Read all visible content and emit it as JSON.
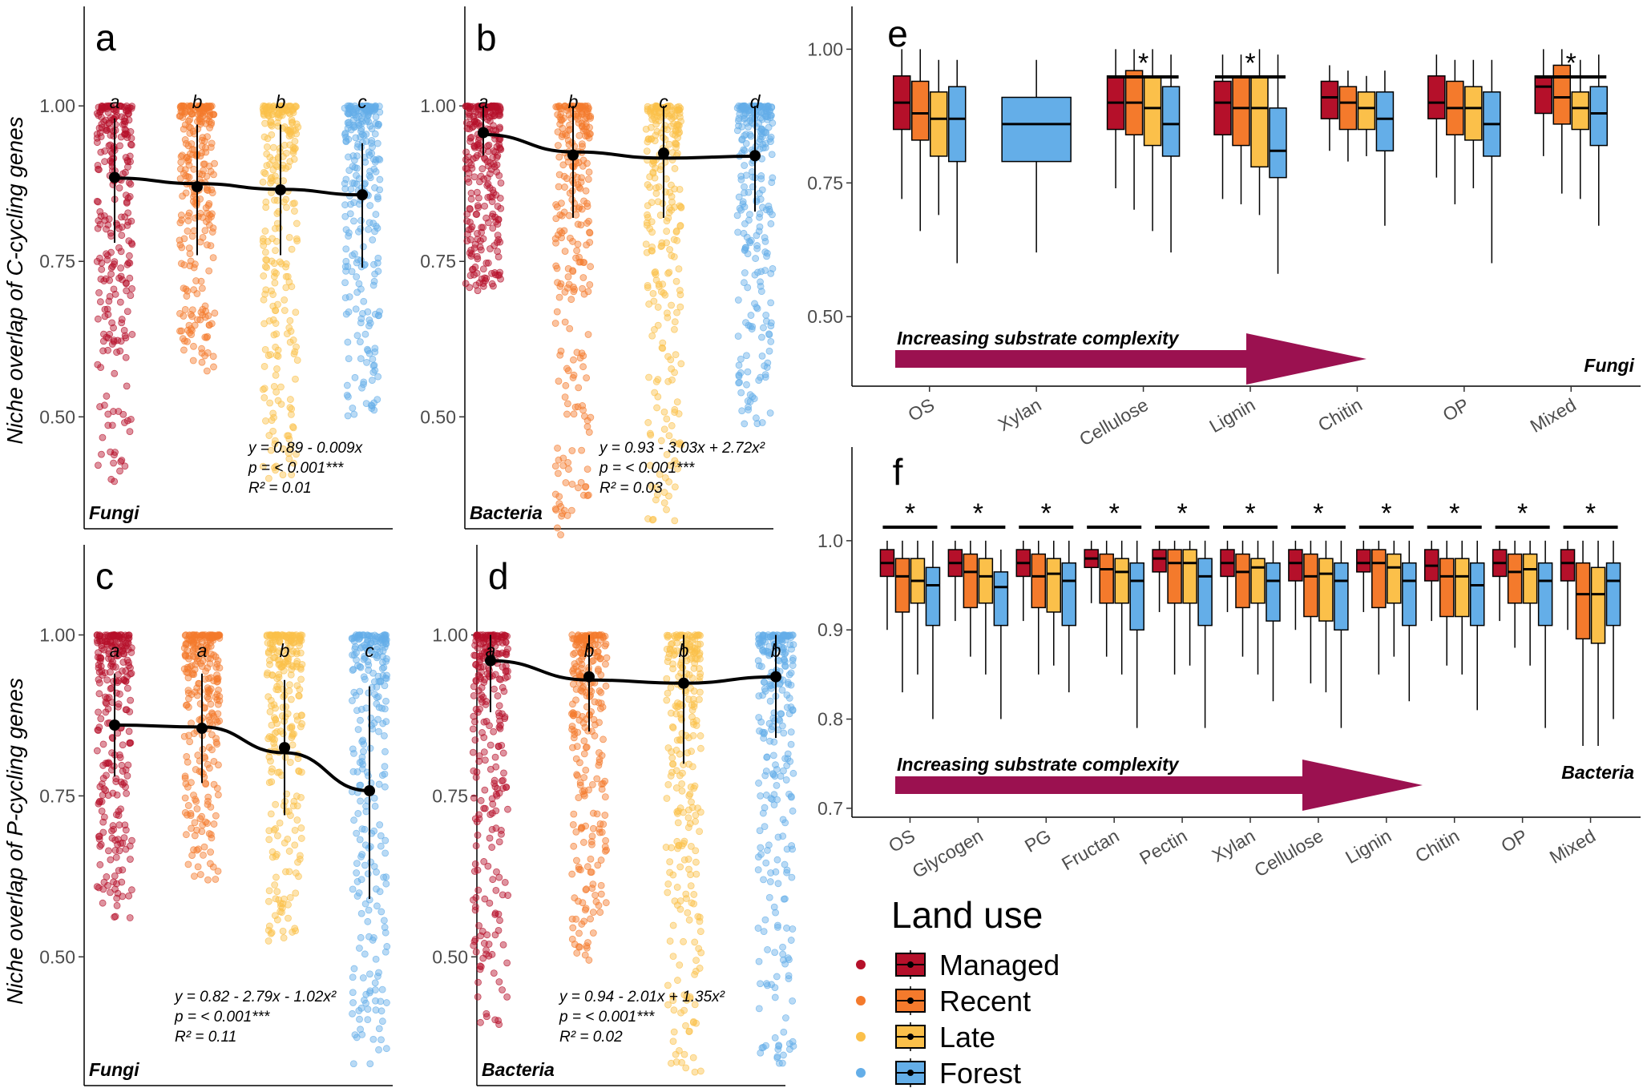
{
  "colors": {
    "Managed": "#b5102a",
    "Recent": "#f47a2c",
    "Late": "#fbc04a",
    "Forest": "#64aee8",
    "arrow": "#9b1150"
  },
  "y_axis_labels": {
    "top": "Niche overlap of C-cycling genes",
    "bottom": "Niche overlap of P-cycling genes"
  },
  "legend": {
    "title": "Land use",
    "items": [
      "Managed",
      "Recent",
      "Late",
      "Forest"
    ]
  },
  "chart_data": [
    {
      "panel": "a",
      "type": "scatter",
      "domain_label": "Fungi",
      "ylim": [
        0.32,
        1.16
      ],
      "yticks": [
        "0.50",
        "0.75",
        "1.00"
      ],
      "ytick_values": [
        0.5,
        0.75,
        1.0
      ],
      "groups": [
        "Managed",
        "Recent",
        "Late",
        "Forest"
      ],
      "letters": [
        "a",
        "b",
        "b",
        "c"
      ],
      "means": [
        0.885,
        0.87,
        0.865,
        0.857
      ],
      "sd_low": [
        0.78,
        0.76,
        0.76,
        0.74
      ],
      "sd_high": [
        0.98,
        0.97,
        0.97,
        0.94
      ],
      "point_min": [
        0.39,
        0.57,
        0.4,
        0.49
      ],
      "fit": [
        0.884,
        0.875,
        0.866,
        0.857
      ],
      "equation": "y = 0.89 - 0.009x",
      "pvalue": "p = < 0.001***",
      "r2": "R² = 0.01"
    },
    {
      "panel": "b",
      "type": "scatter",
      "domain_label": "Bacteria",
      "ylim": [
        0.32,
        1.16
      ],
      "yticks": [
        "0.50",
        "0.75",
        "1.00"
      ],
      "ytick_values": [
        0.5,
        0.75,
        1.0
      ],
      "groups": [
        "Managed",
        "Recent",
        "Late",
        "Forest"
      ],
      "letters": [
        "a",
        "b",
        "c",
        "d"
      ],
      "means": [
        0.957,
        0.921,
        0.924,
        0.92
      ],
      "sd_low": [
        0.92,
        0.82,
        0.82,
        0.83
      ],
      "sd_high": [
        1.0,
        1.0,
        1.0,
        1.0
      ],
      "point_min": [
        0.7,
        0.31,
        0.33,
        0.48
      ],
      "fit": [
        0.954,
        0.926,
        0.916,
        0.919
      ],
      "equation": "y = 0.93 - 3.03x + 2.72x²",
      "pvalue": "p = < 0.001***",
      "r2": "R² = 0.03"
    },
    {
      "panel": "c",
      "type": "scatter",
      "domain_label": "Fungi",
      "ylim": [
        0.3,
        1.14
      ],
      "yticks": [
        "0.50",
        "0.75",
        "1.00"
      ],
      "ytick_values": [
        0.5,
        0.75,
        1.0
      ],
      "groups": [
        "Managed",
        "Recent",
        "Late",
        "Forest"
      ],
      "letters": [
        "a",
        "a",
        "b",
        "c"
      ],
      "means": [
        0.86,
        0.855,
        0.825,
        0.758
      ],
      "sd_low": [
        0.78,
        0.77,
        0.72,
        0.59
      ],
      "sd_high": [
        0.94,
        0.94,
        0.93,
        0.92
      ],
      "point_min": [
        0.56,
        0.61,
        0.52,
        0.32
      ],
      "fit": [
        0.86,
        0.857,
        0.817,
        0.758
      ],
      "equation": "y = 0.82 - 2.79x - 1.02x²",
      "pvalue": "p = < 0.001***",
      "r2": "R² = 0.11"
    },
    {
      "panel": "d",
      "type": "scatter",
      "domain_label": "Bacteria",
      "ylim": [
        0.3,
        1.14
      ],
      "yticks": [
        "0.50",
        "0.75",
        "1.00"
      ],
      "ytick_values": [
        0.5,
        0.75,
        1.0
      ],
      "groups": [
        "Managed",
        "Recent",
        "Late",
        "Forest"
      ],
      "letters": [
        "a",
        "b",
        "b",
        "b"
      ],
      "means": [
        0.96,
        0.935,
        0.925,
        0.935
      ],
      "sd_low": [
        0.88,
        0.85,
        0.8,
        0.84
      ],
      "sd_high": [
        1.0,
        1.0,
        1.0,
        1.0
      ],
      "point_min": [
        0.38,
        0.49,
        0.32,
        0.33
      ],
      "fit": [
        0.96,
        0.93,
        0.925,
        0.935
      ],
      "equation": "y = 0.94 - 2.01x + 1.35x²",
      "pvalue": "p = < 0.001***",
      "r2": "R² = 0.02"
    },
    {
      "panel": "e",
      "type": "box",
      "domain_label": "Fungi",
      "ylim": [
        0.37,
        1.08
      ],
      "yticks": [
        "0.50",
        "0.75",
        "1.00"
      ],
      "ytick_values": [
        0.5,
        0.75,
        1.0
      ],
      "arrow_label": "Increasing substrate complexity",
      "categories": [
        "OS",
        "Xylan",
        "Cellulose",
        "Lignin",
        "Chitin",
        "OP",
        "Mixed"
      ],
      "significant": [
        false,
        false,
        true,
        true,
        false,
        false,
        true
      ],
      "boxes": [
        [
          [
            0.72,
            0.85,
            0.9,
            0.95,
            1.0
          ],
          [
            0.66,
            0.83,
            0.88,
            0.94,
            1.0
          ],
          [
            0.69,
            0.8,
            0.87,
            0.92,
            0.98
          ],
          [
            0.6,
            0.79,
            0.87,
            0.93,
            0.98
          ]
        ],
        [
          null,
          null,
          null,
          [
            0.62,
            0.79,
            0.86,
            0.91,
            0.98
          ]
        ],
        [
          [
            0.74,
            0.85,
            0.9,
            0.95,
            1.0
          ],
          [
            0.7,
            0.84,
            0.9,
            0.96,
            1.0
          ],
          [
            0.66,
            0.82,
            0.89,
            0.95,
            1.0
          ],
          [
            0.62,
            0.8,
            0.86,
            0.93,
            0.99
          ]
        ],
        [
          [
            0.72,
            0.84,
            0.9,
            0.94,
            0.99
          ],
          [
            0.71,
            0.82,
            0.89,
            0.95,
            0.99
          ],
          [
            0.69,
            0.78,
            0.89,
            0.95,
            1.0
          ],
          [
            0.58,
            0.76,
            0.81,
            0.89,
            0.99
          ]
        ],
        [
          [
            0.81,
            0.87,
            0.91,
            0.94,
            0.97
          ],
          [
            0.79,
            0.85,
            0.9,
            0.93,
            0.96
          ],
          [
            0.8,
            0.85,
            0.89,
            0.92,
            0.95
          ],
          [
            0.67,
            0.81,
            0.87,
            0.92,
            0.96
          ]
        ],
        [
          [
            0.76,
            0.87,
            0.9,
            0.95,
            0.99
          ],
          [
            0.71,
            0.84,
            0.89,
            0.94,
            0.98
          ],
          [
            0.74,
            0.83,
            0.89,
            0.93,
            0.98
          ],
          [
            0.6,
            0.8,
            0.86,
            0.92,
            0.98
          ]
        ],
        [
          [
            0.8,
            0.88,
            0.93,
            0.95,
            1.0
          ],
          [
            0.73,
            0.86,
            0.91,
            0.97,
            1.0
          ],
          [
            0.72,
            0.85,
            0.89,
            0.92,
            0.98
          ],
          [
            0.67,
            0.82,
            0.88,
            0.93,
            0.99
          ]
        ]
      ]
    },
    {
      "panel": "f",
      "type": "box",
      "domain_label": "Bacteria",
      "ylim": [
        0.69,
        1.105
      ],
      "yticks": [
        "0.7",
        "0.8",
        "0.9",
        "1.0"
      ],
      "ytick_values": [
        0.7,
        0.8,
        0.9,
        1.0
      ],
      "arrow_label": "Increasing substrate complexity",
      "categories": [
        "OS",
        "Glycogen",
        "PG",
        "Fructan",
        "Pectin",
        "Xylan",
        "Cellulose",
        "Lignin",
        "Chitin",
        "OP",
        "Mixed"
      ],
      "significant": [
        true,
        true,
        true,
        true,
        true,
        true,
        true,
        true,
        true,
        true,
        true
      ],
      "boxes": [
        [
          [
            0.9,
            0.96,
            0.975,
            0.99,
            1.0
          ],
          [
            0.83,
            0.92,
            0.96,
            0.98,
            1.0
          ],
          [
            0.85,
            0.93,
            0.955,
            0.98,
            1.0
          ],
          [
            0.8,
            0.905,
            0.95,
            0.97,
            1.0
          ]
        ],
        [
          [
            0.91,
            0.96,
            0.975,
            0.99,
            1.0
          ],
          [
            0.87,
            0.925,
            0.965,
            0.985,
            1.0
          ],
          [
            0.85,
            0.93,
            0.96,
            0.98,
            1.0
          ],
          [
            0.8,
            0.905,
            0.948,
            0.965,
            0.99
          ]
        ],
        [
          [
            0.91,
            0.96,
            0.975,
            0.99,
            1.0
          ],
          [
            0.85,
            0.925,
            0.96,
            0.985,
            1.0
          ],
          [
            0.86,
            0.92,
            0.963,
            0.98,
            1.0
          ],
          [
            0.83,
            0.905,
            0.955,
            0.975,
            1.0
          ]
        ],
        [
          [
            0.93,
            0.97,
            0.98,
            0.99,
            1.0
          ],
          [
            0.87,
            0.93,
            0.968,
            0.985,
            1.0
          ],
          [
            0.85,
            0.93,
            0.965,
            0.98,
            1.0
          ],
          [
            0.79,
            0.9,
            0.955,
            0.975,
            1.0
          ]
        ],
        [
          [
            0.92,
            0.965,
            0.98,
            0.99,
            1.0
          ],
          [
            0.85,
            0.93,
            0.975,
            0.99,
            1.0
          ],
          [
            0.86,
            0.93,
            0.975,
            0.99,
            1.0
          ],
          [
            0.79,
            0.905,
            0.96,
            0.98,
            1.0
          ]
        ],
        [
          [
            0.92,
            0.96,
            0.975,
            0.99,
            1.0
          ],
          [
            0.87,
            0.925,
            0.965,
            0.985,
            1.0
          ],
          [
            0.85,
            0.93,
            0.97,
            0.98,
            1.0
          ],
          [
            0.82,
            0.91,
            0.955,
            0.975,
            1.0
          ]
        ],
        [
          [
            0.9,
            0.955,
            0.975,
            0.99,
            1.0
          ],
          [
            0.84,
            0.915,
            0.96,
            0.985,
            1.0
          ],
          [
            0.83,
            0.91,
            0.963,
            0.98,
            1.0
          ],
          [
            0.79,
            0.9,
            0.955,
            0.975,
            1.0
          ]
        ],
        [
          [
            0.92,
            0.965,
            0.975,
            0.99,
            1.0
          ],
          [
            0.85,
            0.925,
            0.975,
            0.99,
            1.0
          ],
          [
            0.87,
            0.93,
            0.97,
            0.985,
            1.0
          ],
          [
            0.82,
            0.905,
            0.955,
            0.975,
            1.0
          ]
        ],
        [
          [
            0.91,
            0.955,
            0.972,
            0.99,
            1.0
          ],
          [
            0.86,
            0.915,
            0.96,
            0.98,
            1.0
          ],
          [
            0.85,
            0.915,
            0.96,
            0.98,
            1.0
          ],
          [
            0.81,
            0.905,
            0.95,
            0.975,
            1.0
          ]
        ],
        [
          [
            0.91,
            0.96,
            0.975,
            0.99,
            1.0
          ],
          [
            0.88,
            0.93,
            0.965,
            0.985,
            1.0
          ],
          [
            0.86,
            0.93,
            0.968,
            0.985,
            1.0
          ],
          [
            0.79,
            0.905,
            0.955,
            0.975,
            1.0
          ]
        ],
        [
          [
            0.9,
            0.955,
            0.975,
            0.99,
            1.0
          ],
          [
            0.77,
            0.89,
            0.94,
            0.975,
            1.0
          ],
          [
            0.77,
            0.885,
            0.94,
            0.97,
            1.0
          ],
          [
            0.8,
            0.905,
            0.955,
            0.975,
            1.0
          ]
        ]
      ]
    }
  ]
}
